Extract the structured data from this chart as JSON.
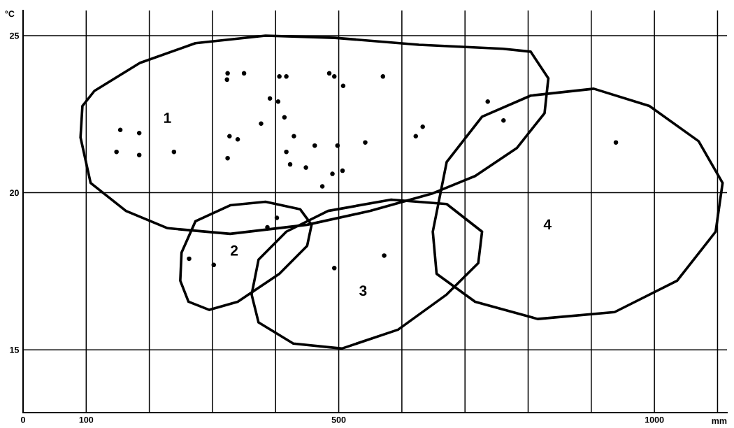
{
  "chart_data": {
    "type": "scatter",
    "xlabel": "mm",
    "ylabel": "°C",
    "xlim": [
      0,
      1115
    ],
    "ylim": [
      13,
      25.8
    ],
    "xticks": [
      0,
      100,
      {
        "value": 200,
        "label": null
      },
      {
        "value": 300,
        "label": null
      },
      {
        "value": 400,
        "label": null
      },
      500,
      {
        "value": 600,
        "label": null
      },
      {
        "value": 700,
        "label": null
      },
      {
        "value": 800,
        "label": null
      },
      {
        "value": 900,
        "label": null
      },
      1000,
      {
        "value": 1100,
        "label": null
      }
    ],
    "yticks": [
      15,
      20,
      25
    ],
    "grid": true,
    "marker": "circle",
    "series": [
      {
        "color": "#000000",
        "x": [
          154,
          184,
          148,
          184,
          239,
          324,
          323,
          350,
          327,
          340,
          324,
          377,
          391,
          404,
          406,
          417,
          414,
          417,
          423,
          429,
          462,
          448,
          490,
          474,
          485,
          493,
          507,
          498,
          506,
          542,
          570,
          633,
          622,
          736,
          761,
          939,
          263,
          302,
          387,
          402,
          493,
          572
        ],
        "values": [
          22.0,
          21.9,
          21.3,
          21.2,
          21.3,
          23.8,
          23.6,
          23.8,
          21.8,
          21.7,
          21.1,
          22.2,
          23.0,
          22.9,
          23.7,
          23.7,
          22.4,
          21.3,
          20.9,
          21.8,
          21.5,
          20.8,
          20.6,
          20.2,
          23.8,
          23.7,
          23.4,
          21.5,
          20.7,
          21.6,
          23.7,
          22.1,
          21.8,
          22.9,
          22.3,
          21.6,
          17.9,
          17.7,
          18.9,
          19.2,
          17.6,
          18.0
        ]
      },
      {
        "type": "line",
        "color": "#000000",
        "marker": "none",
        "x": [
          91,
          94,
          113,
          185,
          273,
          384,
          494,
          627,
          760,
          804,
          832,
          null,
          91,
          107,
          163,
          229,
          328,
          450,
          550,
          649,
          716,
          782,
          826,
          832
        ],
        "values": [
          21.76,
          22.76,
          23.24,
          24.13,
          24.76,
          25.0,
          24.93,
          24.71,
          24.58,
          24.49,
          23.64,
          null,
          21.76,
          20.31,
          19.42,
          18.87,
          18.69,
          18.98,
          19.42,
          19.98,
          20.53,
          21.42,
          22.53,
          23.64
        ]
      },
      {
        "type": "line",
        "color": "#000000",
        "marker": "none",
        "x": [
          249,
          251,
          273,
          328,
          384,
          439,
          457,
          null,
          249,
          262,
          295,
          340,
          406,
          450,
          457
        ],
        "values": [
          17.2,
          18.09,
          19.09,
          19.6,
          19.71,
          19.47,
          18.98,
          null,
          17.2,
          16.53,
          16.27,
          16.53,
          17.42,
          18.31,
          18.98
        ]
      },
      {
        "type": "line",
        "color": "#000000",
        "marker": "none",
        "x": [
          362,
          373,
          417,
          483,
          583,
          671,
          727,
          null,
          362,
          373,
          428,
          505,
          594,
          671,
          721,
          727
        ],
        "values": [
          16.76,
          17.87,
          18.76,
          19.42,
          19.78,
          19.64,
          18.76,
          null,
          16.76,
          15.87,
          15.2,
          15.04,
          15.64,
          16.76,
          17.76,
          18.76
        ]
      },
      {
        "type": "line",
        "color": "#000000",
        "marker": "none",
        "x": [
          649,
          671,
          727,
          804,
          904,
          992,
          1070,
          1108,
          null,
          649,
          655,
          716,
          815,
          937,
          1036,
          1097,
          1108
        ],
        "values": [
          18.76,
          20.98,
          22.42,
          23.09,
          23.31,
          22.76,
          21.64,
          20.31,
          null,
          18.76,
          17.42,
          16.53,
          15.98,
          16.2,
          17.2,
          18.76,
          20.31
        ]
      }
    ],
    "annotations": [
      "1",
      "2",
      "3",
      "4"
    ]
  }
}
